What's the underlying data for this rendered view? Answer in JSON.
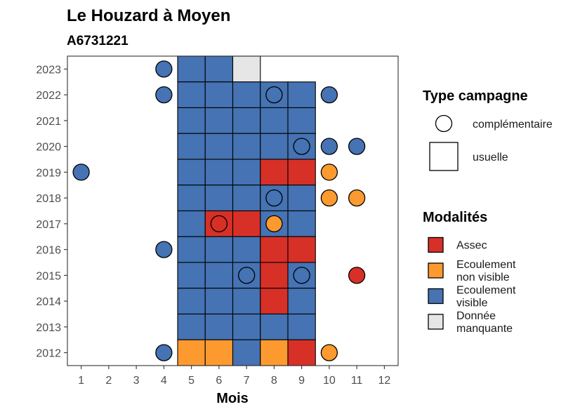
{
  "chart_data": {
    "type": "heatmap",
    "title": "Le Houzard à Moyen",
    "subtitle": "A6731221",
    "xlabel": "Mois",
    "ylabel": "",
    "x_ticks": [
      "1",
      "2",
      "3",
      "4",
      "5",
      "6",
      "7",
      "8",
      "9",
      "10",
      "11",
      "12"
    ],
    "y_ticks": [
      "2012",
      "2013",
      "2014",
      "2015",
      "2016",
      "2017",
      "2018",
      "2019",
      "2020",
      "2021",
      "2022",
      "2023"
    ],
    "xlim": [
      0.5,
      12.5
    ],
    "ylim": [
      2011.5,
      2023.5
    ],
    "grid": false,
    "legend_position": "right",
    "legend_type": {
      "title": "Type campagne",
      "entries": [
        {
          "label": "complémentaire",
          "shape": "circle"
        },
        {
          "label": "usuelle",
          "shape": "square"
        }
      ]
    },
    "legend_modalites": {
      "title": "Modalités",
      "entries": [
        {
          "key": "assec",
          "label_lines": [
            "Assec"
          ],
          "color": "#d73027"
        },
        {
          "key": "ecoulement_non_visible",
          "label_lines": [
            "Ecoulement",
            "non visible"
          ],
          "color": "#fd9a2f"
        },
        {
          "key": "ecoulement_visible",
          "label_lines": [
            "Ecoulement",
            "visible"
          ],
          "color": "#4573b3"
        },
        {
          "key": "donnee_manquante",
          "label_lines": [
            "Donnée",
            "manquante"
          ],
          "color": "#e6e6e6"
        }
      ]
    },
    "usuelle": [
      {
        "year": 2023,
        "month": 5,
        "value": "ecoulement_visible"
      },
      {
        "year": 2023,
        "month": 6,
        "value": "ecoulement_visible"
      },
      {
        "year": 2023,
        "month": 7,
        "value": "donnee_manquante"
      },
      {
        "year": 2022,
        "month": 5,
        "value": "ecoulement_visible"
      },
      {
        "year": 2022,
        "month": 6,
        "value": "ecoulement_visible"
      },
      {
        "year": 2022,
        "month": 7,
        "value": "ecoulement_visible"
      },
      {
        "year": 2022,
        "month": 8,
        "value": "ecoulement_visible"
      },
      {
        "year": 2022,
        "month": 9,
        "value": "ecoulement_visible"
      },
      {
        "year": 2021,
        "month": 5,
        "value": "ecoulement_visible"
      },
      {
        "year": 2021,
        "month": 6,
        "value": "ecoulement_visible"
      },
      {
        "year": 2021,
        "month": 7,
        "value": "ecoulement_visible"
      },
      {
        "year": 2021,
        "month": 8,
        "value": "ecoulement_visible"
      },
      {
        "year": 2021,
        "month": 9,
        "value": "ecoulement_visible"
      },
      {
        "year": 2020,
        "month": 5,
        "value": "ecoulement_visible"
      },
      {
        "year": 2020,
        "month": 6,
        "value": "ecoulement_visible"
      },
      {
        "year": 2020,
        "month": 7,
        "value": "ecoulement_visible"
      },
      {
        "year": 2020,
        "month": 8,
        "value": "ecoulement_visible"
      },
      {
        "year": 2020,
        "month": 9,
        "value": "ecoulement_visible"
      },
      {
        "year": 2019,
        "month": 5,
        "value": "ecoulement_visible"
      },
      {
        "year": 2019,
        "month": 6,
        "value": "ecoulement_visible"
      },
      {
        "year": 2019,
        "month": 7,
        "value": "ecoulement_visible"
      },
      {
        "year": 2019,
        "month": 8,
        "value": "assec"
      },
      {
        "year": 2019,
        "month": 9,
        "value": "assec"
      },
      {
        "year": 2018,
        "month": 5,
        "value": "ecoulement_visible"
      },
      {
        "year": 2018,
        "month": 6,
        "value": "ecoulement_visible"
      },
      {
        "year": 2018,
        "month": 7,
        "value": "ecoulement_visible"
      },
      {
        "year": 2018,
        "month": 8,
        "value": "ecoulement_visible"
      },
      {
        "year": 2018,
        "month": 9,
        "value": "ecoulement_visible"
      },
      {
        "year": 2017,
        "month": 5,
        "value": "ecoulement_visible"
      },
      {
        "year": 2017,
        "month": 6,
        "value": "assec"
      },
      {
        "year": 2017,
        "month": 7,
        "value": "assec"
      },
      {
        "year": 2017,
        "month": 8,
        "value": "ecoulement_visible"
      },
      {
        "year": 2017,
        "month": 9,
        "value": "ecoulement_visible"
      },
      {
        "year": 2016,
        "month": 5,
        "value": "ecoulement_visible"
      },
      {
        "year": 2016,
        "month": 6,
        "value": "ecoulement_visible"
      },
      {
        "year": 2016,
        "month": 7,
        "value": "ecoulement_visible"
      },
      {
        "year": 2016,
        "month": 8,
        "value": "assec"
      },
      {
        "year": 2016,
        "month": 9,
        "value": "assec"
      },
      {
        "year": 2015,
        "month": 5,
        "value": "ecoulement_visible"
      },
      {
        "year": 2015,
        "month": 6,
        "value": "ecoulement_visible"
      },
      {
        "year": 2015,
        "month": 7,
        "value": "ecoulement_visible"
      },
      {
        "year": 2015,
        "month": 8,
        "value": "assec"
      },
      {
        "year": 2015,
        "month": 9,
        "value": "ecoulement_visible"
      },
      {
        "year": 2014,
        "month": 5,
        "value": "ecoulement_visible"
      },
      {
        "year": 2014,
        "month": 6,
        "value": "ecoulement_visible"
      },
      {
        "year": 2014,
        "month": 7,
        "value": "ecoulement_visible"
      },
      {
        "year": 2014,
        "month": 8,
        "value": "assec"
      },
      {
        "year": 2014,
        "month": 9,
        "value": "ecoulement_visible"
      },
      {
        "year": 2013,
        "month": 5,
        "value": "ecoulement_visible"
      },
      {
        "year": 2013,
        "month": 6,
        "value": "ecoulement_visible"
      },
      {
        "year": 2013,
        "month": 7,
        "value": "ecoulement_visible"
      },
      {
        "year": 2013,
        "month": 8,
        "value": "ecoulement_visible"
      },
      {
        "year": 2013,
        "month": 9,
        "value": "ecoulement_visible"
      },
      {
        "year": 2012,
        "month": 5,
        "value": "ecoulement_non_visible"
      },
      {
        "year": 2012,
        "month": 6,
        "value": "ecoulement_non_visible"
      },
      {
        "year": 2012,
        "month": 7,
        "value": "ecoulement_visible"
      },
      {
        "year": 2012,
        "month": 8,
        "value": "ecoulement_non_visible"
      },
      {
        "year": 2012,
        "month": 9,
        "value": "assec"
      }
    ],
    "complementaire": [
      {
        "year": 2023,
        "month": 4,
        "value": "ecoulement_visible"
      },
      {
        "year": 2022,
        "month": 4,
        "value": "ecoulement_visible"
      },
      {
        "year": 2022,
        "month": 8,
        "value": "ecoulement_visible"
      },
      {
        "year": 2022,
        "month": 10,
        "value": "ecoulement_visible"
      },
      {
        "year": 2020,
        "month": 9,
        "value": "ecoulement_visible"
      },
      {
        "year": 2020,
        "month": 10,
        "value": "ecoulement_visible"
      },
      {
        "year": 2020,
        "month": 11,
        "value": "ecoulement_visible"
      },
      {
        "year": 2019,
        "month": 1,
        "value": "ecoulement_visible"
      },
      {
        "year": 2019,
        "month": 10,
        "value": "ecoulement_non_visible"
      },
      {
        "year": 2018,
        "month": 8,
        "value": "ecoulement_visible"
      },
      {
        "year": 2018,
        "month": 10,
        "value": "ecoulement_non_visible"
      },
      {
        "year": 2018,
        "month": 11,
        "value": "ecoulement_non_visible"
      },
      {
        "year": 2017,
        "month": 6,
        "value": "assec"
      },
      {
        "year": 2017,
        "month": 8,
        "value": "ecoulement_non_visible"
      },
      {
        "year": 2016,
        "month": 4,
        "value": "ecoulement_visible"
      },
      {
        "year": 2015,
        "month": 7,
        "value": "ecoulement_visible"
      },
      {
        "year": 2015,
        "month": 9,
        "value": "ecoulement_visible"
      },
      {
        "year": 2015,
        "month": 11,
        "value": "assec"
      },
      {
        "year": 2012,
        "month": 4,
        "value": "ecoulement_visible"
      },
      {
        "year": 2012,
        "month": 10,
        "value": "ecoulement_non_visible"
      }
    ]
  }
}
